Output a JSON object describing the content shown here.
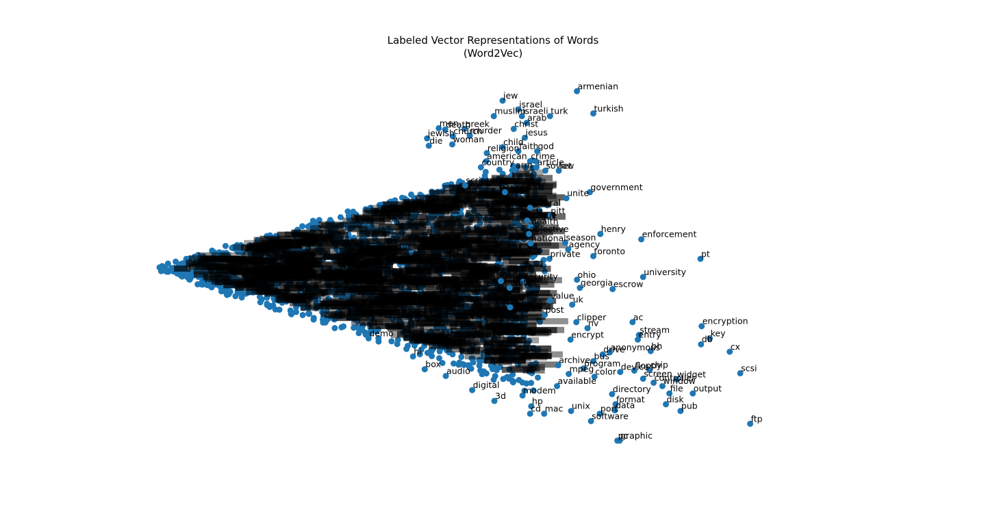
{
  "chart_data": {
    "type": "scatter",
    "title": "Labeled Vector Representations of Words",
    "subtitle": "(Word2Vec)",
    "xlabel": "",
    "ylabel": "",
    "axes_visible": false,
    "grid": false,
    "marker_color": "#1f77b4",
    "xlim": [
      -20,
      1220
    ],
    "ylim": [
      -300,
      320
    ],
    "points": [
      {
        "label": "armenian",
        "x": 720,
        "y": 276
      },
      {
        "label": "jew",
        "x": 593,
        "y": 262
      },
      {
        "label": "israel",
        "x": 620,
        "y": 249
      },
      {
        "label": "israeli",
        "x": 626,
        "y": 239
      },
      {
        "label": "muslim",
        "x": 578,
        "y": 239
      },
      {
        "label": "turk",
        "x": 674,
        "y": 239
      },
      {
        "label": "turkish",
        "x": 748,
        "y": 243
      },
      {
        "label": "arab",
        "x": 634,
        "y": 229
      },
      {
        "label": "christ",
        "x": 612,
        "y": 220
      },
      {
        "label": "jesus",
        "x": 631,
        "y": 207
      },
      {
        "label": "men",
        "x": 484,
        "y": 221
      },
      {
        "label": "greek",
        "x": 528,
        "y": 220
      },
      {
        "label": "death",
        "x": 495,
        "y": 219
      },
      {
        "label": "murder",
        "x": 537,
        "y": 210
      },
      {
        "label": "church",
        "x": 508,
        "y": 209
      },
      {
        "label": "jewish",
        "x": 464,
        "y": 206
      },
      {
        "label": "die",
        "x": 467,
        "y": 195
      },
      {
        "label": "woman",
        "x": 507,
        "y": 197
      },
      {
        "label": "child",
        "x": 593,
        "y": 193
      },
      {
        "label": "faith",
        "x": 620,
        "y": 187
      },
      {
        "label": "god",
        "x": 652,
        "y": 187
      },
      {
        "label": "religion",
        "x": 566,
        "y": 184
      },
      {
        "label": "american",
        "x": 565,
        "y": 172
      },
      {
        "label": "crime",
        "x": 640,
        "y": 172
      },
      {
        "label": "article",
        "x": 651,
        "y": 163
      },
      {
        "label": "arm",
        "x": 614,
        "y": 159
      },
      {
        "label": "soviet",
        "x": 666,
        "y": 158
      },
      {
        "label": "law",
        "x": 689,
        "y": 158
      },
      {
        "label": "country",
        "x": 556,
        "y": 163
      },
      {
        "label": "scripture",
        "x": 529,
        "y": 136
      },
      {
        "label": "criminal",
        "x": 597,
        "y": 126
      },
      {
        "label": "government",
        "x": 742,
        "y": 126
      },
      {
        "label": "unite",
        "x": 702,
        "y": 117
      },
      {
        "label": "federal",
        "x": 640,
        "y": 103
      },
      {
        "label": "pitt",
        "x": 674,
        "y": 91
      },
      {
        "label": "league",
        "x": 635,
        "y": 84
      },
      {
        "label": "health",
        "x": 641,
        "y": 75
      },
      {
        "label": "objective",
        "x": 638,
        "y": 64
      },
      {
        "label": "henry",
        "x": 760,
        "y": 64
      },
      {
        "label": "enforcement",
        "x": 830,
        "y": 56
      },
      {
        "label": "season",
        "x": 700,
        "y": 51
      },
      {
        "label": "national",
        "x": 641,
        "y": 50
      },
      {
        "label": "agency",
        "x": 705,
        "y": 41
      },
      {
        "label": "toronto",
        "x": 748,
        "y": 31
      },
      {
        "label": "private",
        "x": 673,
        "y": 27
      },
      {
        "label": "pt",
        "x": 931,
        "y": 27
      },
      {
        "label": "university",
        "x": 833,
        "y": 0
      },
      {
        "label": "ohio",
        "x": 720,
        "y": -4
      },
      {
        "label": "security",
        "x": 628,
        "y": -7
      },
      {
        "label": "define",
        "x": 590,
        "y": -6
      },
      {
        "label": "status",
        "x": 605,
        "y": -16
      },
      {
        "label": "georgia",
        "x": 725,
        "y": -16
      },
      {
        "label": "escrow",
        "x": 781,
        "y": -18
      },
      {
        "label": "value",
        "x": 674,
        "y": -35
      },
      {
        "label": "uk",
        "x": 712,
        "y": -41
      },
      {
        "label": "mailing",
        "x": 606,
        "y": -45
      },
      {
        "label": "post",
        "x": 665,
        "y": -56
      },
      {
        "label": "clipper",
        "x": 719,
        "y": -67
      },
      {
        "label": "ac",
        "x": 815,
        "y": -67
      },
      {
        "label": "encryption",
        "x": 933,
        "y": -73
      },
      {
        "label": "nv",
        "x": 738,
        "y": -76
      },
      {
        "label": "stream",
        "x": 826,
        "y": -86
      },
      {
        "label": "key",
        "x": 947,
        "y": -91
      },
      {
        "label": "encrypt",
        "x": 709,
        "y": -93
      },
      {
        "label": "entry",
        "x": 824,
        "y": -93
      },
      {
        "label": "db",
        "x": 932,
        "y": -100
      },
      {
        "label": "cx",
        "x": 981,
        "y": -111
      },
      {
        "label": "bh",
        "x": 846,
        "y": -110
      },
      {
        "label": "anonymous",
        "x": 776,
        "y": -112
      },
      {
        "label": "drive",
        "x": 764,
        "y": -115
      },
      {
        "label": "bus",
        "x": 748,
        "y": -125
      },
      {
        "label": "archive",
        "x": 688,
        "y": -131
      },
      {
        "label": "program",
        "x": 731,
        "y": -136
      },
      {
        "label": "chip",
        "x": 844,
        "y": -138
      },
      {
        "label": "floppy",
        "x": 818,
        "y": -139
      },
      {
        "label": "scsi",
        "x": 999,
        "y": -143
      },
      {
        "label": "device",
        "x": 794,
        "y": -141
      },
      {
        "label": "color",
        "x": 750,
        "y": -148
      },
      {
        "label": "mpeg",
        "x": 706,
        "y": -144
      },
      {
        "label": "screen",
        "x": 833,
        "y": -151
      },
      {
        "label": "widget",
        "x": 890,
        "y": -152
      },
      {
        "label": "controller",
        "x": 851,
        "y": -157
      },
      {
        "label": "window",
        "x": 866,
        "y": -162
      },
      {
        "label": "file",
        "x": 878,
        "y": -173
      },
      {
        "label": "output",
        "x": 918,
        "y": -173
      },
      {
        "label": "directory",
        "x": 780,
        "y": -174
      },
      {
        "label": "disk",
        "x": 872,
        "y": -189
      },
      {
        "label": "format",
        "x": 786,
        "y": -189
      },
      {
        "label": "data",
        "x": 785,
        "y": -198
      },
      {
        "label": "pub",
        "x": 897,
        "y": -199
      },
      {
        "label": "unix",
        "x": 710,
        "y": -199
      },
      {
        "label": "port",
        "x": 759,
        "y": -203
      },
      {
        "label": "software",
        "x": 744,
        "y": -214
      },
      {
        "label": "ftp",
        "x": 1016,
        "y": -218
      },
      {
        "label": "graphic",
        "x": 793,
        "y": -243
      },
      {
        "label": "pc",
        "x": 789,
        "y": -243
      },
      {
        "label": "mac",
        "x": 664,
        "y": -203
      },
      {
        "label": "hp",
        "x": 642,
        "y": -192
      },
      {
        "label": "cd",
        "x": 640,
        "y": -203
      },
      {
        "label": "modem",
        "x": 627,
        "y": -176
      },
      {
        "label": "3d",
        "x": 579,
        "y": -184
      },
      {
        "label": "digital",
        "x": 541,
        "y": -168
      },
      {
        "label": "audio",
        "x": 496,
        "y": -147
      },
      {
        "label": "box",
        "x": 460,
        "y": -137
      },
      {
        "label": "hi",
        "x": 440,
        "y": -118
      },
      {
        "label": "demo",
        "x": 364,
        "y": -91
      },
      {
        "label": "available",
        "x": 686,
        "y": -162
      }
    ]
  }
}
